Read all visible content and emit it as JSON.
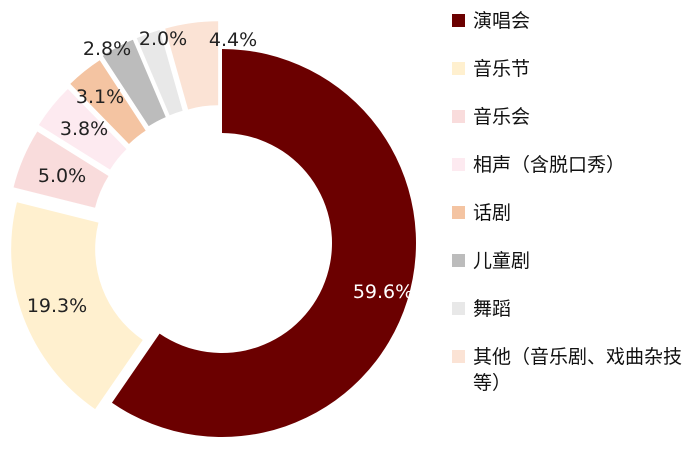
{
  "chart_data": {
    "type": "pie",
    "variant": "exploded-donut",
    "title": "",
    "legend_position": "right",
    "series": [
      {
        "name": "演唱会",
        "value": 59.6,
        "label": "59.6%",
        "color": "#6b0000"
      },
      {
        "name": "音乐节",
        "value": 19.3,
        "label": "19.3%",
        "color": "#fff0cf"
      },
      {
        "name": "音乐会",
        "value": 5.0,
        "label": "5.0%",
        "color": "#f9dcdc"
      },
      {
        "name": "相声（含脱口秀）",
        "value": 3.8,
        "label": "3.8%",
        "color": "#fdeaf0"
      },
      {
        "name": "话剧",
        "value": 3.1,
        "label": "3.1%",
        "color": "#f4c4a2"
      },
      {
        "name": "儿童剧",
        "value": 2.8,
        "label": "2.8%",
        "color": "#bcbcbc"
      },
      {
        "name": "舞蹈",
        "value": 2.0,
        "label": "2.0%",
        "color": "#e8e8e8"
      },
      {
        "name": "其他（音乐剧、戏曲杂技等）",
        "value": 4.4,
        "label": "4.4%",
        "color": "#fbe3d5"
      }
    ]
  }
}
